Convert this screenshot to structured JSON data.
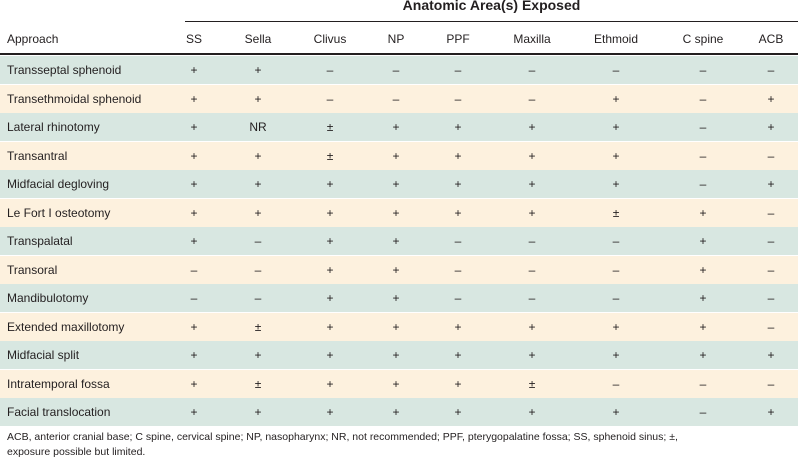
{
  "table": {
    "group_header": "Anatomic Area(s) Exposed",
    "first_column_header": "Approach",
    "columns": [
      "SS",
      "Sella",
      "Clivus",
      "NP",
      "PPF",
      "Maxilla",
      "Ethmoid",
      "C spine",
      "ACB"
    ],
    "row_colors": [
      "#d8e7e1",
      "#fdf1de"
    ],
    "rows": [
      {
        "approach": "Transseptal sphenoid",
        "values": [
          "+",
          "+",
          "–",
          "–",
          "–",
          "–",
          "–",
          "–",
          "–"
        ]
      },
      {
        "approach": "Transethmoidal sphenoid",
        "values": [
          "+",
          "+",
          "–",
          "–",
          "–",
          "–",
          "+",
          "–",
          "+"
        ]
      },
      {
        "approach": "Lateral rhinotomy",
        "values": [
          "+",
          "NR",
          "±",
          "+",
          "+",
          "+",
          "+",
          "–",
          "+"
        ]
      },
      {
        "approach": "Transantral",
        "values": [
          "+",
          "+",
          "±",
          "+",
          "+",
          "+",
          "+",
          "–",
          "–"
        ]
      },
      {
        "approach": "Midfacial degloving",
        "values": [
          "+",
          "+",
          "+",
          "+",
          "+",
          "+",
          "+",
          "–",
          "+"
        ]
      },
      {
        "approach": "Le Fort I osteotomy",
        "values": [
          "+",
          "+",
          "+",
          "+",
          "+",
          "+",
          "±",
          "+",
          "–"
        ]
      },
      {
        "approach": "Transpalatal",
        "values": [
          "+",
          "–",
          "+",
          "+",
          "–",
          "–",
          "–",
          "+",
          "–"
        ]
      },
      {
        "approach": "Transoral",
        "values": [
          "–",
          "–",
          "+",
          "+",
          "–",
          "–",
          "–",
          "+",
          "–"
        ]
      },
      {
        "approach": "Mandibulotomy",
        "values": [
          "–",
          "–",
          "+",
          "+",
          "–",
          "–",
          "–",
          "+",
          "–"
        ]
      },
      {
        "approach": "Extended maxillotomy",
        "values": [
          "+",
          "±",
          "+",
          "+",
          "+",
          "+",
          "+",
          "+",
          "–"
        ]
      },
      {
        "approach": "Midfacial split",
        "values": [
          "+",
          "+",
          "+",
          "+",
          "+",
          "+",
          "+",
          "+",
          "+"
        ]
      },
      {
        "approach": "Intratemporal fossa",
        "values": [
          "+",
          "±",
          "+",
          "+",
          "+",
          "±",
          "–",
          "–",
          "–"
        ]
      },
      {
        "approach": "Facial translocation",
        "values": [
          "+",
          "+",
          "+",
          "+",
          "+",
          "+",
          "+",
          "–",
          "+"
        ]
      }
    ],
    "footnote_line1": "ACB, anterior cranial base; C spine, cervical spine; NP, nasopharynx; NR, not recommended; PPF, pterygopalatine fossa; SS, sphenoid sinus; ±,",
    "footnote_line2": "exposure possible but limited."
  }
}
